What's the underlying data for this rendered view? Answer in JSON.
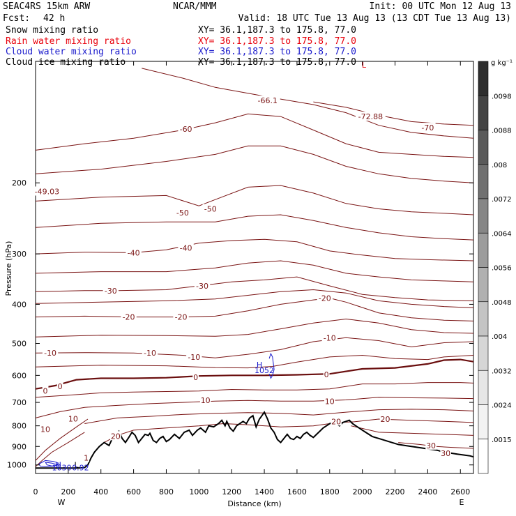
{
  "header": {
    "model": "SEAC4RS 15km ARW",
    "center": "NCAR/MMM",
    "init": "Init: 00 UTC Mon 12 Aug 13",
    "fcst_label": "Fcst:",
    "fcst_value": "42 h",
    "valid": "Valid: 18 UTC Tue 13 Aug 13 (13 CDT Tue 13 Aug 13)"
  },
  "legend": [
    {
      "name": "Snow mixing ratio",
      "xy": "XY=  36.1,187.3 to 175.8, 77.0",
      "color": "#000000"
    },
    {
      "name": "Rain water mixing ratio",
      "xy": "XY=  36.1,187.3 to 175.8, 77.0",
      "color": "#e8000b"
    },
    {
      "name": "Cloud water mixing ratio",
      "xy": "XY=  36.1,187.3 to 175.8, 77.0",
      "color": "#1a1acc"
    },
    {
      "name": "Cloud ice mixing ratio",
      "xy": "XY=  36.1,187.3 to 175.8, 77.0",
      "color": "#000000"
    }
  ],
  "colorbar": {
    "unit": "g kg⁻¹",
    "ticks": [
      ".0098",
      ".0088",
      ".008",
      ".0072",
      ".0064",
      ".0056",
      ".0048",
      ".004",
      ".0032",
      ".0024",
      ".0015"
    ],
    "colors": [
      "#2e2e2e",
      "#444444",
      "#5a5a5a",
      "#707070",
      "#868686",
      "#9c9c9c",
      "#b0b0b0",
      "#c4c4c4",
      "#d6d6d6",
      "#e6e6e6",
      "#f2f2f2",
      "#ffffff"
    ]
  },
  "chart_data": {
    "type": "line",
    "title": "",
    "xlabel": "Distance (km)",
    "ylabel": "Pressure (hPa)",
    "xlim": [
      0,
      2680
    ],
    "ylim": [
      1050,
      100
    ],
    "y_log_scale": true,
    "x_ticks": [
      0,
      200,
      400,
      600,
      800,
      1000,
      1200,
      1400,
      1600,
      1800,
      2000,
      2200,
      2400,
      2600
    ],
    "y_ticks": [
      200,
      300,
      400,
      500,
      600,
      700,
      800,
      900,
      1000
    ],
    "x_end_labels": {
      "left": "W",
      "right": "E"
    },
    "contour_color": "#7a1414",
    "zero_contour_color": "#6a0e0e",
    "terrain_color": "#000000",
    "terrain": {
      "x": [
        0,
        60,
        120,
        200,
        260,
        300,
        320,
        340,
        360,
        390,
        420,
        450,
        470,
        490,
        510,
        530,
        550,
        570,
        590,
        610,
        630,
        650,
        670,
        690,
        700,
        720,
        740,
        760,
        780,
        800,
        820,
        850,
        880,
        910,
        940,
        960,
        990,
        1010,
        1040,
        1060,
        1090,
        1120,
        1140,
        1160,
        1170,
        1190,
        1210,
        1230,
        1250,
        1270,
        1290,
        1310,
        1330,
        1350,
        1370,
        1380,
        1400,
        1420,
        1440,
        1460,
        1480,
        1500,
        1520,
        1540,
        1560,
        1580,
        1600,
        1620,
        1640,
        1660,
        1680,
        1700,
        1720,
        1740,
        1760,
        1780,
        1800,
        1820,
        1840,
        1860,
        1880,
        1900,
        1920,
        1940,
        1960,
        1980,
        2000,
        2020,
        2040,
        2060,
        2080,
        2100,
        2140,
        2180,
        2220,
        2260,
        2300,
        2340,
        2380,
        2420,
        2460,
        2500,
        2540,
        2580,
        2620,
        2660,
        2680
      ],
      "p": [
        1018,
        1018,
        1018,
        1018,
        1018,
        1015,
        1000,
        960,
        930,
        900,
        880,
        895,
        860,
        840,
        825,
        860,
        880,
        855,
        830,
        845,
        880,
        860,
        840,
        845,
        835,
        870,
        880,
        860,
        850,
        875,
        865,
        840,
        860,
        830,
        820,
        845,
        820,
        810,
        830,
        800,
        805,
        790,
        775,
        800,
        780,
        810,
        825,
        800,
        790,
        780,
        790,
        765,
        755,
        805,
        770,
        760,
        740,
        770,
        810,
        830,
        865,
        880,
        860,
        840,
        860,
        865,
        850,
        860,
        840,
        830,
        845,
        855,
        840,
        825,
        810,
        800,
        790,
        785,
        790,
        800,
        785,
        780,
        775,
        790,
        800,
        810,
        820,
        830,
        840,
        850,
        855,
        860,
        870,
        880,
        890,
        895,
        900,
        905,
        910,
        915,
        920,
        930,
        935,
        940,
        945,
        950,
        955
      ]
    },
    "contour_labels": [
      {
        "x": 1420,
        "p": 125,
        "text": "-66.1"
      },
      {
        "x": 2050,
        "p": 137,
        "text": "-72.88"
      },
      {
        "x": 2400,
        "p": 146,
        "text": "-70"
      },
      {
        "x": 920,
        "p": 147,
        "text": "-60"
      },
      {
        "x": 70,
        "p": 210,
        "text": "-49.03"
      },
      {
        "x": 900,
        "p": 237,
        "text": "-50"
      },
      {
        "x": 1070,
        "p": 232,
        "text": "-50"
      },
      {
        "x": 600,
        "p": 298,
        "text": "-40"
      },
      {
        "x": 920,
        "p": 290,
        "text": "-40"
      },
      {
        "x": 1020,
        "p": 360,
        "text": "-30"
      },
      {
        "x": 460,
        "p": 370,
        "text": "-30"
      },
      {
        "x": 1770,
        "p": 386,
        "text": "-20"
      },
      {
        "x": 570,
        "p": 430,
        "text": "-20"
      },
      {
        "x": 890,
        "p": 430,
        "text": "-20"
      },
      {
        "x": 90,
        "p": 528,
        "text": "-10"
      },
      {
        "x": 700,
        "p": 528,
        "text": "-10"
      },
      {
        "x": 970,
        "p": 540,
        "text": "-10"
      },
      {
        "x": 1800,
        "p": 484,
        "text": "-10"
      },
      {
        "x": 150,
        "p": 638,
        "text": "0"
      },
      {
        "x": 60,
        "p": 655,
        "text": "0"
      },
      {
        "x": 980,
        "p": 606,
        "text": "0"
      },
      {
        "x": 1780,
        "p": 597,
        "text": "0"
      },
      {
        "x": 1040,
        "p": 692,
        "text": "10"
      },
      {
        "x": 1800,
        "p": 695,
        "text": "10"
      },
      {
        "x": 230,
        "p": 768,
        "text": "10"
      },
      {
        "x": 60,
        "p": 815,
        "text": "10"
      },
      {
        "x": 1840,
        "p": 780,
        "text": "20"
      },
      {
        "x": 2140,
        "p": 770,
        "text": "20"
      },
      {
        "x": 490,
        "p": 848,
        "text": "20"
      },
      {
        "x": 2420,
        "p": 895,
        "text": "30"
      },
      {
        "x": 2510,
        "p": 935,
        "text": "30"
      },
      {
        "x": 310,
        "p": 960,
        "text": "1"
      }
    ],
    "contours": [
      {
        "level": "-70",
        "x": [
          1700,
          1900,
          2100,
          2300,
          2500,
          2680
        ],
        "p": [
          126,
          130,
          136,
          141,
          143,
          144
        ]
      },
      {
        "level": "-66.1",
        "x": [
          650,
          900,
          1100,
          1300,
          1500,
          1700,
          1900,
          2100,
          2300,
          2500,
          2680
        ],
        "p": [
          104,
          110,
          116,
          120,
          124,
          128,
          134,
          144,
          150,
          153,
          155
        ]
      },
      {
        "level": "-60",
        "x": [
          0,
          300,
          600,
          900,
          1100,
          1300,
          1500,
          1700,
          1900,
          2100,
          2300,
          2500,
          2680
        ],
        "p": [
          166,
          160,
          155,
          148,
          142,
          135,
          137,
          148,
          160,
          168,
          170,
          172,
          173
        ]
      },
      {
        "level": "-55",
        "x": [
          0,
          400,
          800,
          1100,
          1300,
          1500,
          1700,
          1900,
          2100,
          2300,
          2500,
          2680
        ],
        "p": [
          190,
          185,
          177,
          170,
          162,
          162,
          170,
          182,
          190,
          195,
          198,
          200
        ]
      },
      {
        "level": "-50",
        "x": [
          0,
          400,
          800,
          1000,
          1100,
          1300,
          1500,
          1700,
          1900,
          2100,
          2300,
          2500,
          2680
        ],
        "p": [
          222,
          217,
          215,
          228,
          220,
          205,
          203,
          212,
          225,
          232,
          236,
          238,
          240
        ]
      },
      {
        "level": "-45",
        "x": [
          0,
          400,
          800,
          1100,
          1300,
          1500,
          1700,
          1900,
          2100,
          2300,
          2500,
          2680
        ],
        "p": [
          258,
          252,
          250,
          250,
          242,
          240,
          248,
          258,
          266,
          272,
          275,
          277
        ]
      },
      {
        "level": "-40",
        "x": [
          0,
          300,
          600,
          800,
          1000,
          1200,
          1400,
          1600,
          1800,
          2000,
          2200,
          2400,
          2680
        ],
        "p": [
          300,
          297,
          298,
          293,
          282,
          278,
          276,
          280,
          295,
          302,
          308,
          310,
          312
        ]
      },
      {
        "level": "-35",
        "x": [
          0,
          400,
          800,
          1100,
          1300,
          1500,
          1700,
          1900,
          2100,
          2300,
          2500,
          2680
        ],
        "p": [
          335,
          332,
          332,
          325,
          316,
          312,
          320,
          335,
          342,
          348,
          350,
          352
        ]
      },
      {
        "level": "-30",
        "x": [
          0,
          300,
          500,
          800,
          1000,
          1200,
          1400,
          1600,
          1800,
          2000,
          2200,
          2400,
          2680
        ],
        "p": [
          372,
          370,
          370,
          368,
          360,
          352,
          348,
          342,
          360,
          378,
          385,
          390,
          392
        ]
      },
      {
        "level": "-25",
        "x": [
          0,
          400,
          800,
          1100,
          1300,
          1500,
          1700,
          1900,
          2100,
          2300,
          2500,
          2680
        ],
        "p": [
          398,
          395,
          392,
          388,
          380,
          372,
          368,
          375,
          392,
          400,
          405,
          408
        ]
      },
      {
        "level": "-20",
        "x": [
          0,
          300,
          600,
          900,
          1100,
          1300,
          1500,
          1700,
          1800,
          1900,
          2100,
          2300,
          2500,
          2680
        ],
        "p": [
          430,
          428,
          430,
          430,
          428,
          415,
          400,
          390,
          386,
          395,
          420,
          432,
          438,
          440
        ]
      },
      {
        "level": "-15",
        "x": [
          0,
          400,
          800,
          1100,
          1300,
          1500,
          1700,
          1900,
          2100,
          2300,
          2500,
          2680
        ],
        "p": [
          482,
          477,
          478,
          480,
          475,
          460,
          445,
          435,
          445,
          462,
          470,
          472
        ]
      },
      {
        "level": "-10",
        "x": [
          0,
          300,
          600,
          900,
          1100,
          1300,
          1500,
          1700,
          1900,
          2100,
          2300,
          2500,
          2680
        ],
        "p": [
          528,
          527,
          528,
          535,
          543,
          532,
          518,
          495,
          484,
          492,
          510,
          498,
          495
        ]
      },
      {
        "level": "-5",
        "x": [
          0,
          400,
          800,
          1100,
          1300,
          1450,
          1600,
          1800,
          2000,
          2200,
          2400,
          2500,
          2680
        ],
        "p": [
          572,
          566,
          568,
          574,
          575,
          570,
          556,
          540,
          535,
          545,
          548,
          540,
          535
        ]
      },
      {
        "level": "0",
        "x": [
          0,
          60,
          120,
          250,
          400,
          600,
          800,
          1000,
          1200,
          1400,
          1600,
          1800,
          2000,
          2200,
          2400,
          2500,
          2600,
          2680
        ],
        "p": [
          648,
          642,
          636,
          615,
          610,
          610,
          608,
          602,
          600,
          600,
          598,
          595,
          578,
          575,
          562,
          550,
          548,
          555
        ]
      },
      {
        "level": "5",
        "x": [
          0,
          200,
          400,
          600,
          800,
          1000,
          1200,
          1400,
          1600,
          1800,
          2000,
          2200,
          2400,
          2600,
          2680
        ],
        "p": [
          680,
          672,
          663,
          660,
          658,
          656,
          650,
          652,
          652,
          648,
          630,
          630,
          625,
          625,
          627
        ]
      },
      {
        "level": "10",
        "x": [
          0,
          150,
          300,
          500,
          700,
          900,
          1100,
          1300,
          1500,
          1700,
          1900,
          2100,
          2300,
          2500,
          2680
        ],
        "p": [
          765,
          738,
          720,
          712,
          705,
          700,
          695,
          692,
          695,
          695,
          690,
          680,
          682,
          683,
          685
        ]
      },
      {
        "level": "15",
        "x": [
          300,
          500,
          700,
          900,
          1100,
          1300,
          1500,
          1700,
          1900,
          2100,
          2300,
          2500,
          2680
        ],
        "p": [
          790,
          765,
          758,
          750,
          745,
          742,
          745,
          752,
          740,
          730,
          728,
          730,
          735
        ]
      },
      {
        "level": "20",
        "x": [
          420,
          500,
          600,
          800,
          1000,
          1150,
          1300,
          1500,
          1700,
          1850,
          1950,
          2100,
          2300,
          2500,
          2680
        ],
        "p": [
          880,
          845,
          820,
          810,
          800,
          790,
          795,
          805,
          800,
          785,
          782,
          770,
          775,
          780,
          785
        ]
      },
      {
        "level": "25",
        "x": [
          1930,
          2100,
          2300,
          2500,
          2680
        ],
        "p": [
          800,
          830,
          835,
          840,
          845
        ]
      },
      {
        "level": "30",
        "x": [
          2220,
          2350,
          2450,
          2550,
          2680
        ],
        "p": [
          880,
          890,
          900,
          905,
          910
        ]
      },
      {
        "level": "10-lower",
        "x": [
          0,
          60,
          150,
          260,
          320
        ],
        "p": [
          975,
          920,
          860,
          800,
          770
        ]
      },
      {
        "level": "5-lower",
        "x": [
          0,
          40,
          100,
          200,
          300
        ],
        "p": [
          1010,
          975,
          930,
          880,
          830
        ]
      }
    ],
    "annotations": [
      {
        "x": 1370,
        "p": 565,
        "text": "H",
        "color": "#1a1acc"
      },
      {
        "x": 1400,
        "p": 583,
        "text": "1052",
        "color": "#1a1acc"
      },
      {
        "x": 140,
        "p": 1000,
        "text": "H",
        "color": "#1a1acc"
      },
      {
        "x": 250,
        "p": 1000,
        "text": "L",
        "color": "#000000"
      },
      {
        "x": 160,
        "p": 1016,
        "text": "1630",
        "color": "#1a1acc"
      },
      {
        "x": 275,
        "p": 1016,
        "text": "0.92",
        "color": "#1a1acc"
      },
      {
        "x": 2010,
        "p": 102,
        "text": "L",
        "color": "#e8000b"
      }
    ],
    "cloud_water_features": [
      {
        "x": [
          1430,
          1440,
          1450,
          1460,
          1450,
          1440,
          1430
        ],
        "p": [
          545,
          530,
          540,
          580,
          600,
          610,
          595
        ]
      },
      {
        "x": [
          20,
          60,
          110,
          140,
          120,
          70,
          30,
          20
        ],
        "p": [
          995,
          975,
          980,
          990,
          1005,
          1010,
          1008,
          995
        ]
      },
      {
        "x": [
          60,
          100,
          140,
          110,
          70,
          60
        ],
        "p": [
          985,
          990,
          1000,
          1008,
          1000,
          985
        ]
      }
    ]
  }
}
